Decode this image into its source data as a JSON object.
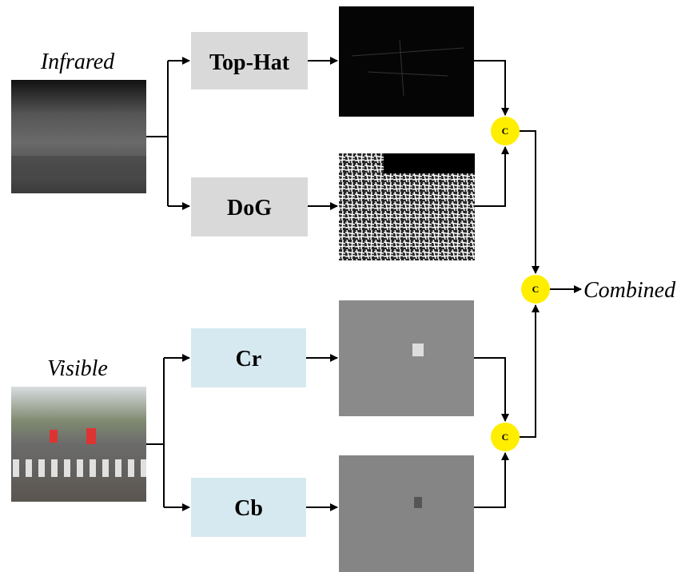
{
  "labels": {
    "infrared": "Infrared",
    "visible": "Visible",
    "combined": "Combined"
  },
  "boxes": {
    "top_hat": "Top-Hat",
    "dog": "DoG",
    "cr": "Cr",
    "cb": "Cb"
  },
  "concat": "C"
}
